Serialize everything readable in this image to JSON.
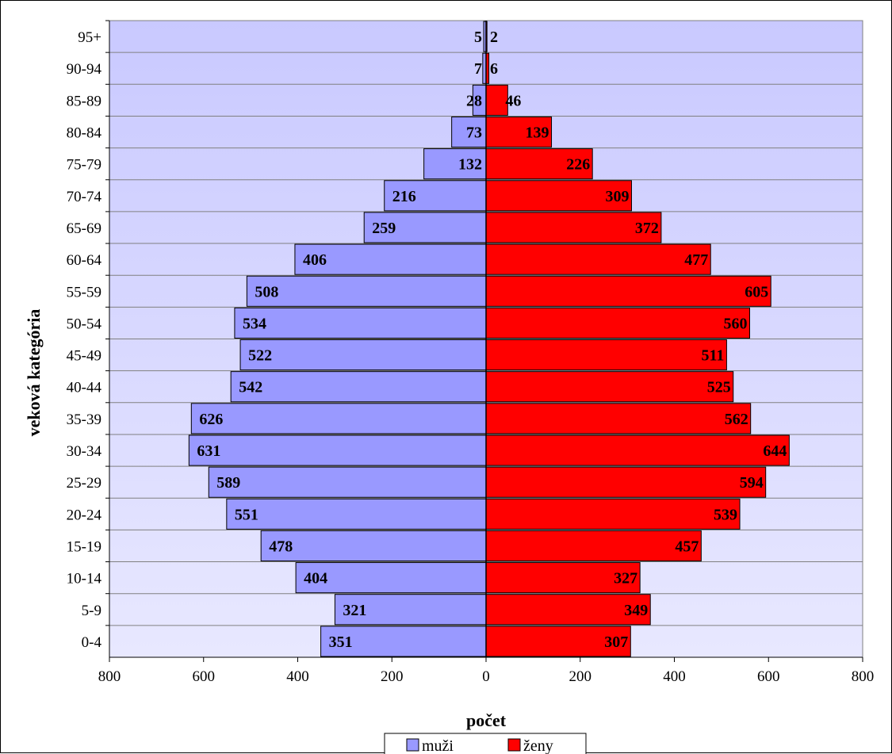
{
  "chart_data": {
    "type": "bar",
    "orientation": "horizontal",
    "layout": "population-pyramid",
    "title": "",
    "xlabel": "počet",
    "ylabel": "veková kategória",
    "xlim": [
      -800,
      800
    ],
    "x_ticks": [
      -800,
      -600,
      -400,
      -200,
      0,
      200,
      400,
      600,
      800
    ],
    "x_tick_labels": [
      "800",
      "600",
      "400",
      "200",
      "0",
      "200",
      "400",
      "600",
      "800"
    ],
    "categories": [
      "0-4",
      "5-9",
      "10-14",
      "15-19",
      "20-24",
      "25-29",
      "30-34",
      "35-39",
      "40-44",
      "45-49",
      "50-54",
      "55-59",
      "60-64",
      "65-69",
      "70-74",
      "75-79",
      "80-84",
      "85-89",
      "90-94",
      "95+"
    ],
    "series": [
      {
        "name": "muži",
        "side": "left",
        "color": "#9999ff",
        "values": [
          351,
          321,
          404,
          478,
          551,
          589,
          631,
          626,
          542,
          522,
          534,
          508,
          406,
          259,
          216,
          132,
          73,
          28,
          7,
          5
        ]
      },
      {
        "name": "ženy",
        "side": "right",
        "color": "#ff0000",
        "values": [
          307,
          349,
          327,
          457,
          539,
          594,
          644,
          562,
          525,
          511,
          560,
          605,
          477,
          372,
          309,
          226,
          139,
          46,
          6,
          2
        ]
      }
    ],
    "gridlines": "horizontal",
    "legend_position": "bottom",
    "plot_background_gradient": [
      "#c9c9ff",
      "#e8e8ff"
    ]
  }
}
